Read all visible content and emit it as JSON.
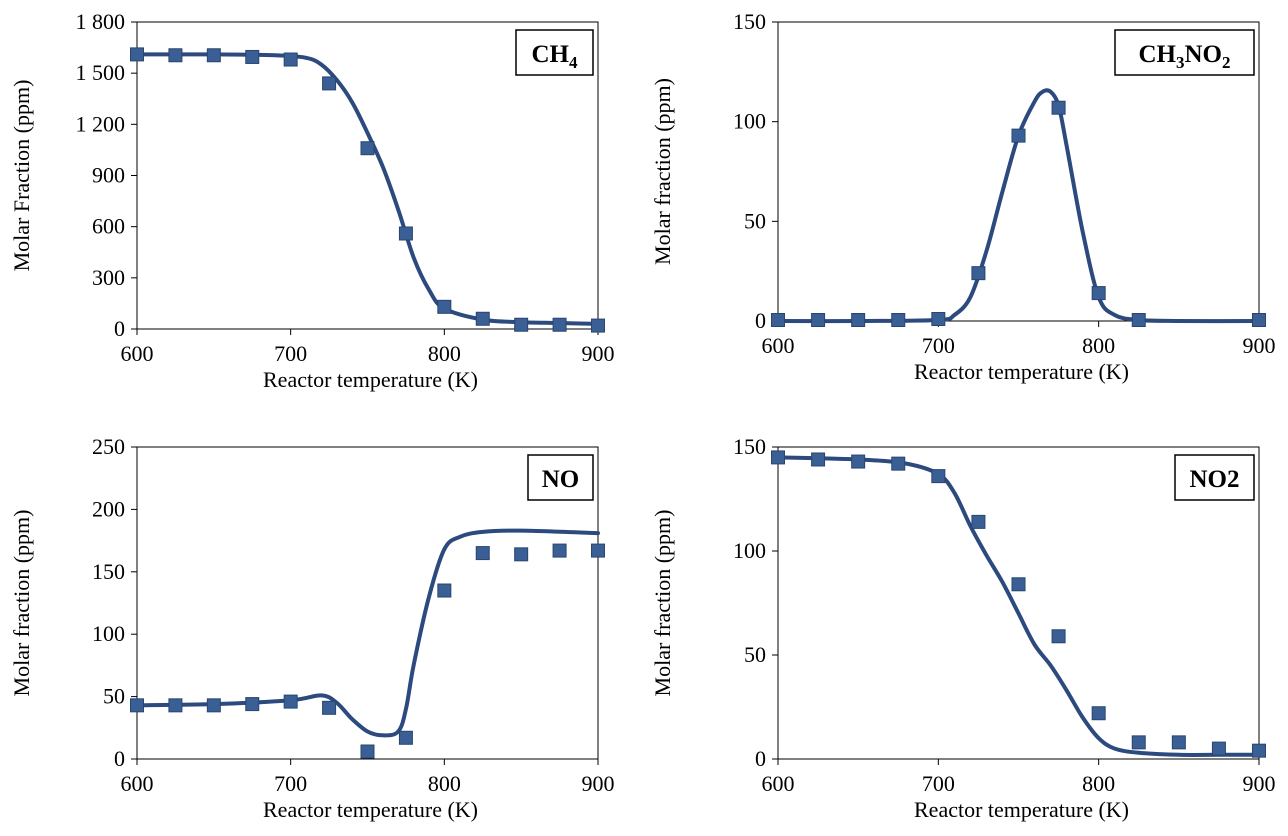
{
  "chart_data": [
    {
      "type": "scatter",
      "label": "CH",
      "label_sub": "4",
      "xlabel": "Reactor  temperature (K)",
      "ylabel": "Molar Fraction (ppm)",
      "xlim": [
        600,
        900
      ],
      "ylim": [
        0,
        1800
      ],
      "xticks": [
        600,
        700,
        800,
        900
      ],
      "yticks": [
        0,
        300,
        600,
        900,
        1200,
        1500,
        1800
      ],
      "ytick_labels": [
        "0",
        "300",
        "600",
        "900",
        "1 200",
        "1 500",
        "1 800"
      ],
      "grid": false,
      "marker_color": "#3a5f95",
      "line_color": "#2c4a7e",
      "series": [
        {
          "kind": "points",
          "x": [
            600,
            625,
            650,
            675,
            700,
            725,
            750,
            775,
            800,
            825,
            850,
            875,
            900
          ],
          "y": [
            1610,
            1605,
            1605,
            1595,
            1580,
            1440,
            1060,
            560,
            130,
            60,
            25,
            25,
            20
          ]
        },
        {
          "kind": "line",
          "x": [
            600,
            650,
            690,
            710,
            720,
            730,
            740,
            750,
            760,
            770,
            780,
            790,
            800,
            825,
            850,
            875,
            900
          ],
          "y": [
            1610,
            1610,
            1605,
            1590,
            1550,
            1460,
            1330,
            1150,
            950,
            700,
            420,
            230,
            120,
            55,
            40,
            35,
            30
          ]
        }
      ]
    },
    {
      "type": "scatter",
      "label": "CH",
      "label_sub": "3",
      "label_mid": "NO",
      "label_sub2": "2",
      "xlabel": "Reactor temperature (K)",
      "ylabel": "Molar fraction (ppm)",
      "xlim": [
        600,
        900
      ],
      "ylim": [
        0,
        150
      ],
      "xticks": [
        600,
        700,
        800,
        900
      ],
      "yticks": [
        0,
        50,
        100,
        150
      ],
      "ytick_labels": [
        "0",
        "50",
        "100",
        "150"
      ],
      "grid": false,
      "marker_color": "#3a5f95",
      "line_color": "#2c4a7e",
      "series": [
        {
          "kind": "points",
          "x": [
            600,
            625,
            650,
            675,
            700,
            725,
            750,
            775,
            800,
            825,
            900
          ],
          "y": [
            0.5,
            0.5,
            0.5,
            0.5,
            1,
            24,
            93,
            107,
            14,
            0.5,
            0.5
          ]
        },
        {
          "kind": "line",
          "x": [
            600,
            650,
            700,
            710,
            720,
            730,
            740,
            750,
            760,
            765,
            770,
            775,
            780,
            790,
            800,
            810,
            825,
            850,
            900
          ],
          "y": [
            0,
            0,
            0.5,
            3,
            12,
            35,
            65,
            93,
            110,
            115,
            115,
            108,
            88,
            45,
            12,
            3,
            0.5,
            0,
            0
          ]
        }
      ]
    },
    {
      "type": "scatter",
      "label": "NO",
      "xlabel": "Reactor temperature (K)",
      "ylabel": "Molar fraction (ppm)",
      "xlim": [
        600,
        900
      ],
      "ylim": [
        0,
        250
      ],
      "xticks": [
        600,
        700,
        800,
        900
      ],
      "yticks": [
        0,
        50,
        100,
        150,
        200,
        250
      ],
      "ytick_labels": [
        "0",
        "50",
        "100",
        "150",
        "200",
        "250"
      ],
      "grid": false,
      "marker_color": "#3a5f95",
      "line_color": "#2c4a7e",
      "series": [
        {
          "kind": "points",
          "x": [
            600,
            625,
            650,
            675,
            700,
            725,
            750,
            775,
            800,
            825,
            850,
            875,
            900
          ],
          "y": [
            43,
            43,
            43,
            44,
            46,
            41,
            6,
            17,
            135,
            165,
            164,
            167,
            167
          ]
        },
        {
          "kind": "line",
          "x": [
            600,
            650,
            700,
            720,
            730,
            740,
            750,
            760,
            770,
            775,
            780,
            790,
            800,
            810,
            825,
            850,
            900
          ],
          "y": [
            43,
            44,
            47,
            51,
            45,
            32,
            22,
            19,
            22,
            40,
            75,
            130,
            168,
            178,
            182,
            183,
            181
          ]
        }
      ]
    },
    {
      "type": "scatter",
      "label": "NO2",
      "xlabel": "Reactor temperature (K)",
      "ylabel": "Molar fraction (ppm)",
      "xlim": [
        600,
        900
      ],
      "ylim": [
        0,
        150
      ],
      "xticks": [
        600,
        700,
        800,
        900
      ],
      "yticks": [
        0,
        50,
        100,
        150
      ],
      "ytick_labels": [
        "0",
        "50",
        "100",
        "150"
      ],
      "grid": false,
      "marker_color": "#3a5f95",
      "line_color": "#2c4a7e",
      "series": [
        {
          "kind": "points",
          "x": [
            600,
            625,
            650,
            675,
            700,
            725,
            750,
            775,
            800,
            825,
            850,
            875,
            900
          ],
          "y": [
            145,
            144,
            143,
            142,
            136,
            114,
            84,
            59,
            22,
            8,
            8,
            5,
            4
          ]
        },
        {
          "kind": "line",
          "x": [
            600,
            650,
            680,
            700,
            710,
            720,
            730,
            740,
            750,
            760,
            770,
            780,
            790,
            800,
            810,
            825,
            850,
            875,
            900
          ],
          "y": [
            145,
            144,
            142,
            137,
            128,
            112,
            98,
            85,
            70,
            55,
            45,
            33,
            20,
            10,
            5,
            3,
            2,
            2,
            2
          ]
        }
      ]
    }
  ]
}
